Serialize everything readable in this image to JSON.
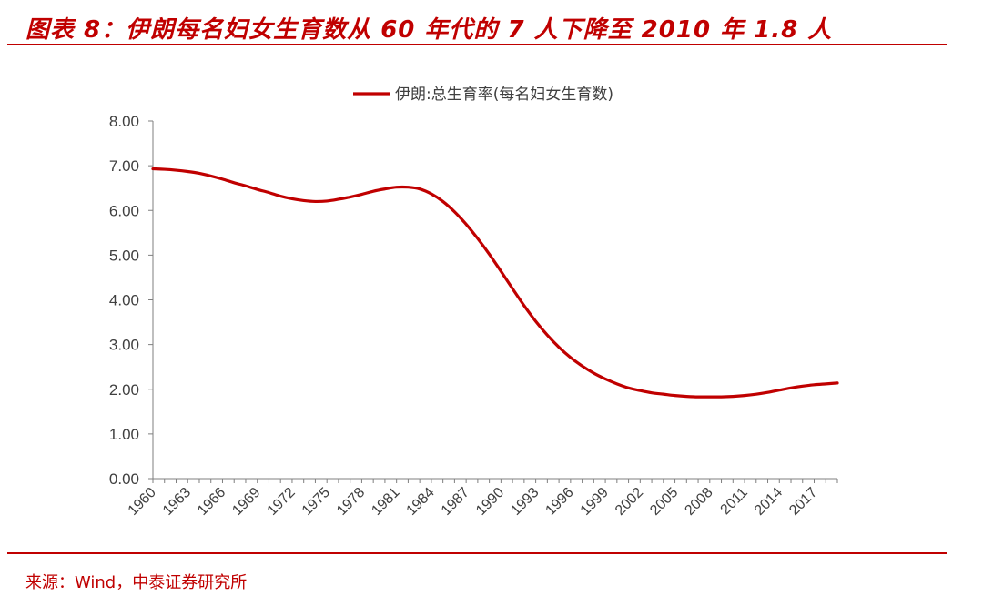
{
  "header": {
    "title": "图表 8：伊朗每名妇女生育数从 60 年代的 7 人下降至 2010 年 1.8 人"
  },
  "footer": {
    "source": "来源：Wind，中泰证券研究所"
  },
  "colors": {
    "accent": "#c00000",
    "axis": "#7f7f7f",
    "text": "#404040"
  },
  "chart_data": {
    "type": "line",
    "title": "",
    "xlabel": "",
    "ylabel": "",
    "ylim": [
      0,
      8
    ],
    "yticks": [
      "0.00",
      "1.00",
      "2.00",
      "3.00",
      "4.00",
      "5.00",
      "6.00",
      "7.00",
      "8.00"
    ],
    "grid": false,
    "legend_position": "top-center",
    "x": [
      1960,
      1961,
      1962,
      1963,
      1964,
      1965,
      1966,
      1967,
      1968,
      1969,
      1970,
      1971,
      1972,
      1973,
      1974,
      1975,
      1976,
      1977,
      1978,
      1979,
      1980,
      1981,
      1982,
      1983,
      1984,
      1985,
      1986,
      1987,
      1988,
      1989,
      1990,
      1991,
      1992,
      1993,
      1994,
      1995,
      1996,
      1997,
      1998,
      1999,
      2000,
      2001,
      2002,
      2003,
      2004,
      2005,
      2006,
      2007,
      2008,
      2009,
      2010,
      2011,
      2012,
      2013,
      2014,
      2015,
      2016,
      2017,
      2018,
      2019
    ],
    "x_tick_labels": [
      "1960",
      "1963",
      "1966",
      "1969",
      "1972",
      "1975",
      "1978",
      "1981",
      "1984",
      "1987",
      "1990",
      "1993",
      "1996",
      "1999",
      "2002",
      "2005",
      "2008",
      "2011",
      "2014",
      "2017"
    ],
    "series": [
      {
        "name": "伊朗:总生育率(每名妇女生育数)",
        "color": "#c00000",
        "values": [
          6.93,
          6.92,
          6.9,
          6.87,
          6.83,
          6.77,
          6.7,
          6.62,
          6.55,
          6.47,
          6.4,
          6.32,
          6.26,
          6.22,
          6.2,
          6.21,
          6.25,
          6.3,
          6.36,
          6.43,
          6.48,
          6.52,
          6.52,
          6.48,
          6.37,
          6.2,
          5.97,
          5.69,
          5.37,
          5.02,
          4.64,
          4.25,
          3.87,
          3.52,
          3.21,
          2.94,
          2.71,
          2.52,
          2.36,
          2.23,
          2.12,
          2.03,
          1.97,
          1.92,
          1.89,
          1.86,
          1.84,
          1.83,
          1.83,
          1.83,
          1.84,
          1.86,
          1.89,
          1.93,
          1.98,
          2.03,
          2.07,
          2.1,
          2.12,
          2.14
        ]
      }
    ]
  }
}
